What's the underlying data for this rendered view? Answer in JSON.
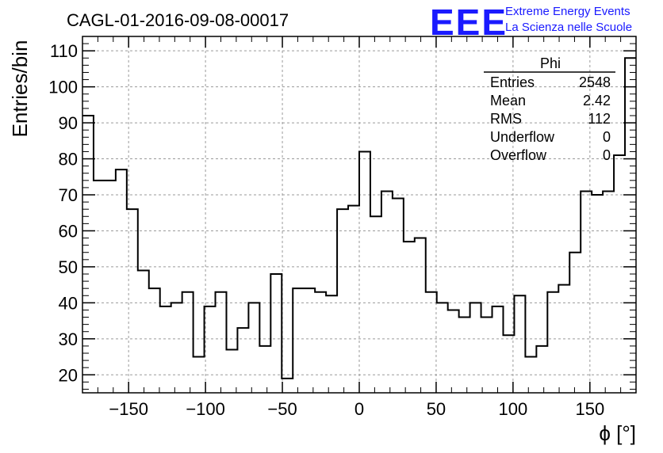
{
  "chart_data": {
    "type": "histogram",
    "title": "CAGL-01-2016-09-08-00017",
    "xlabel": "ϕ [°]",
    "ylabel": "Entries/bin",
    "xlim": [
      -180,
      180
    ],
    "ylim": [
      15,
      114
    ],
    "bin_width": 7.2,
    "xticks": [
      -150,
      -100,
      -50,
      0,
      50,
      100,
      150
    ],
    "yticks": [
      20,
      30,
      40,
      50,
      60,
      70,
      80,
      90,
      100,
      110
    ],
    "grid": true,
    "values": [
      92,
      74,
      74,
      77,
      66,
      49,
      44,
      39,
      40,
      43,
      25,
      39,
      43,
      27,
      33,
      40,
      28,
      48,
      19,
      44,
      44,
      43,
      42,
      66,
      67,
      82,
      64,
      71,
      69,
      57,
      58,
      43,
      40,
      38,
      36,
      40,
      36,
      39,
      31,
      42,
      25,
      28,
      43,
      45,
      54,
      71,
      70,
      71,
      81,
      108
    ],
    "stats_box": {
      "name": "Phi",
      "rows": [
        {
          "label": "Entries",
          "value": "2548"
        },
        {
          "label": "Mean",
          "value": "2.42"
        },
        {
          "label": "RMS",
          "value": "112"
        },
        {
          "label": "Underflow",
          "value": "0"
        },
        {
          "label": "Overflow",
          "value": "0"
        }
      ]
    }
  },
  "logo": {
    "mark": "EEE",
    "line1": "Extreme Energy Events",
    "line2": "La Scienza nelle Scuole",
    "color": "#1a1aff"
  }
}
